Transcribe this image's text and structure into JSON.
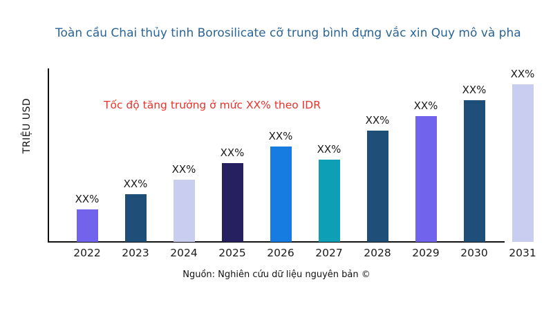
{
  "title": {
    "text": "Toàn cầu Chai thủy tinh Borosilicate cỡ trung bình đựng vắc xin Quy mô và pha"
  },
  "y_axis": {
    "label": "TRIỆU USD"
  },
  "annotation": {
    "text": "Tốc độ tăng trưởng ở mức XX% theo IDR",
    "color": "#e8332a"
  },
  "source": {
    "text": "Nguồn: Nghiên cứu dữ liệu nguyên bản ©"
  },
  "chart_data": {
    "type": "bar",
    "title": "Toàn cầu Chai thủy tinh Borosilicate cỡ trung bình đựng vắc xin Quy mô và pha",
    "xlabel": "",
    "ylabel": "TRIỆU USD",
    "categories": [
      "2022",
      "2023",
      "2024",
      "2025",
      "2026",
      "2027",
      "2028",
      "2029",
      "2030",
      "2031"
    ],
    "values_relative": [
      47,
      69,
      90,
      114,
      138,
      119,
      161,
      182,
      205,
      228
    ],
    "bar_value_labels": [
      "XX%",
      "XX%",
      "XX%",
      "XX%",
      "XX%",
      "XX%",
      "XX%",
      "XX%",
      "XX%",
      "XX%"
    ],
    "bar_colors": [
      "#7163EB",
      "#1F4E79",
      "#C9CDF0",
      "#262060",
      "#177CE2",
      "#0C9FB5",
      "#1F4E79",
      "#7163EB",
      "#1F4E79",
      "#C9CDF0"
    ],
    "annotation": "Tốc độ tăng trưởng ở mức XX% theo IDR",
    "source": "Nguồn: Nghiên cứu dữ liệu nguyên bản ©",
    "grid": false,
    "legend": false,
    "ylim_relative": [
      0,
      250
    ]
  }
}
